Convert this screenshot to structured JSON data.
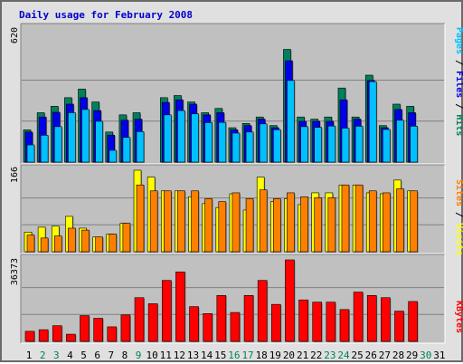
{
  "title": "Daily usage for February 2008",
  "colors": {
    "hits": "#00805c",
    "files": "#0000e6",
    "pages": "#00c0ff",
    "visits": "#ffff00",
    "sites": "#ff8000",
    "kbytes": "#ff0000",
    "weekend_label": "#00805c",
    "weekday_label": "#000000",
    "separator": "#000000",
    "slash": "#000000"
  },
  "side_labels": {
    "top": [
      {
        "text": "Pages",
        "color": "#00c0ff"
      },
      {
        "text": " / ",
        "color": "#000000"
      },
      {
        "text": "Files",
        "color": "#0000e6"
      },
      {
        "text": " / ",
        "color": "#000000"
      },
      {
        "text": "Hits",
        "color": "#00805c"
      }
    ],
    "middle": [
      {
        "text": "Sites",
        "color": "#ff8000"
      },
      {
        "text": " / ",
        "color": "#000000"
      },
      {
        "text": "Visits",
        "color": "#ffff00"
      }
    ],
    "bottom": [
      {
        "text": "KBytes",
        "color": "#ff0000"
      }
    ]
  },
  "chart_data": [
    {
      "type": "bar",
      "panel": "hits_files_pages",
      "ymax_label": "620",
      "ylim": [
        0,
        620
      ],
      "categories": [
        "1",
        "2",
        "3",
        "4",
        "5",
        "6",
        "7",
        "8",
        "9",
        "10",
        "11",
        "12",
        "13",
        "14",
        "15",
        "16",
        "17",
        "18",
        "19",
        "20",
        "21",
        "22",
        "23",
        "24",
        "25",
        "26",
        "27",
        "28",
        "29",
        "30",
        "31"
      ],
      "series": [
        {
          "name": "Hits",
          "color": "#00805c",
          "values": [
            150,
            230,
            260,
            300,
            340,
            280,
            140,
            220,
            230,
            0,
            300,
            310,
            280,
            230,
            250,
            160,
            180,
            210,
            170,
            525,
            210,
            200,
            210,
            345,
            210,
            405,
            170,
            270,
            260,
            0,
            0
          ]
        },
        {
          "name": "Files",
          "color": "#0000e6",
          "values": [
            140,
            210,
            232,
            270,
            300,
            240,
            125,
            195,
            200,
            0,
            278,
            290,
            270,
            220,
            230,
            150,
            170,
            200,
            160,
            472,
            190,
            190,
            190,
            290,
            200,
            380,
            160,
            245,
            230,
            0,
            0
          ]
        },
        {
          "name": "Pages",
          "color": "#00c0ff",
          "values": [
            80,
            125,
            165,
            230,
            245,
            190,
            55,
            115,
            142,
            0,
            220,
            240,
            225,
            184,
            185,
            135,
            140,
            178,
            151,
            380,
            165,
            162,
            168,
            158,
            167,
            375,
            152,
            195,
            167,
            0,
            0
          ]
        }
      ]
    },
    {
      "type": "bar",
      "panel": "visits_sites",
      "ymax_label": "166",
      "ylim": [
        0,
        166
      ],
      "categories": [
        "1",
        "2",
        "3",
        "4",
        "5",
        "6",
        "7",
        "8",
        "9",
        "10",
        "11",
        "12",
        "13",
        "14",
        "15",
        "16",
        "17",
        "18",
        "19",
        "20",
        "21",
        "22",
        "23",
        "24",
        "25",
        "26",
        "27",
        "28",
        "29",
        "30",
        "31"
      ],
      "series": [
        {
          "name": "Visits",
          "color": "#ffff00",
          "values": [
            40,
            50,
            52,
            72,
            48,
            30,
            36,
            58,
            166,
            152,
            124,
            124,
            112,
            98,
            90,
            118,
            85,
            152,
            102,
            108,
            96,
            120,
            120,
            136,
            136,
            120,
            118,
            146,
            124,
            0,
            0
          ]
        },
        {
          "name": "Sites",
          "color": "#ff8000",
          "values": [
            34,
            28,
            32,
            48,
            44,
            30,
            36,
            58,
            136,
            124,
            124,
            124,
            124,
            108,
            102,
            120,
            108,
            126,
            108,
            120,
            112,
            110,
            110,
            136,
            136,
            124,
            120,
            128,
            124,
            0,
            0
          ]
        }
      ]
    },
    {
      "type": "bar",
      "panel": "kbytes",
      "ymax_label": "36373",
      "ylim": [
        0,
        36373
      ],
      "categories": [
        "1",
        "2",
        "3",
        "4",
        "5",
        "6",
        "7",
        "8",
        "9",
        "10",
        "11",
        "12",
        "13",
        "14",
        "15",
        "16",
        "17",
        "18",
        "19",
        "20",
        "21",
        "22",
        "23",
        "24",
        "25",
        "26",
        "27",
        "28",
        "29",
        "30",
        "31"
      ],
      "series": [
        {
          "name": "KBytes",
          "color": "#ff0000",
          "values": [
            4500,
            5200,
            7000,
            3200,
            11500,
            10300,
            6500,
            11800,
            19500,
            16800,
            27200,
            31000,
            15500,
            12400,
            20500,
            12900,
            20500,
            27200,
            16500,
            36373,
            18500,
            17500,
            17500,
            14200,
            22000,
            20500,
            19500,
            13500,
            17800,
            0,
            0
          ]
        }
      ]
    }
  ],
  "x_labels": {
    "days": [
      "1",
      "2",
      "3",
      "4",
      "5",
      "6",
      "7",
      "8",
      "9",
      "10",
      "11",
      "12",
      "13",
      "14",
      "15",
      "16",
      "17",
      "18",
      "19",
      "20",
      "21",
      "22",
      "23",
      "24",
      "25",
      "26",
      "27",
      "28",
      "29",
      "30",
      "31"
    ],
    "weekend_days": [
      "2",
      "3",
      "9",
      "16",
      "17",
      "23",
      "24",
      "30"
    ]
  }
}
